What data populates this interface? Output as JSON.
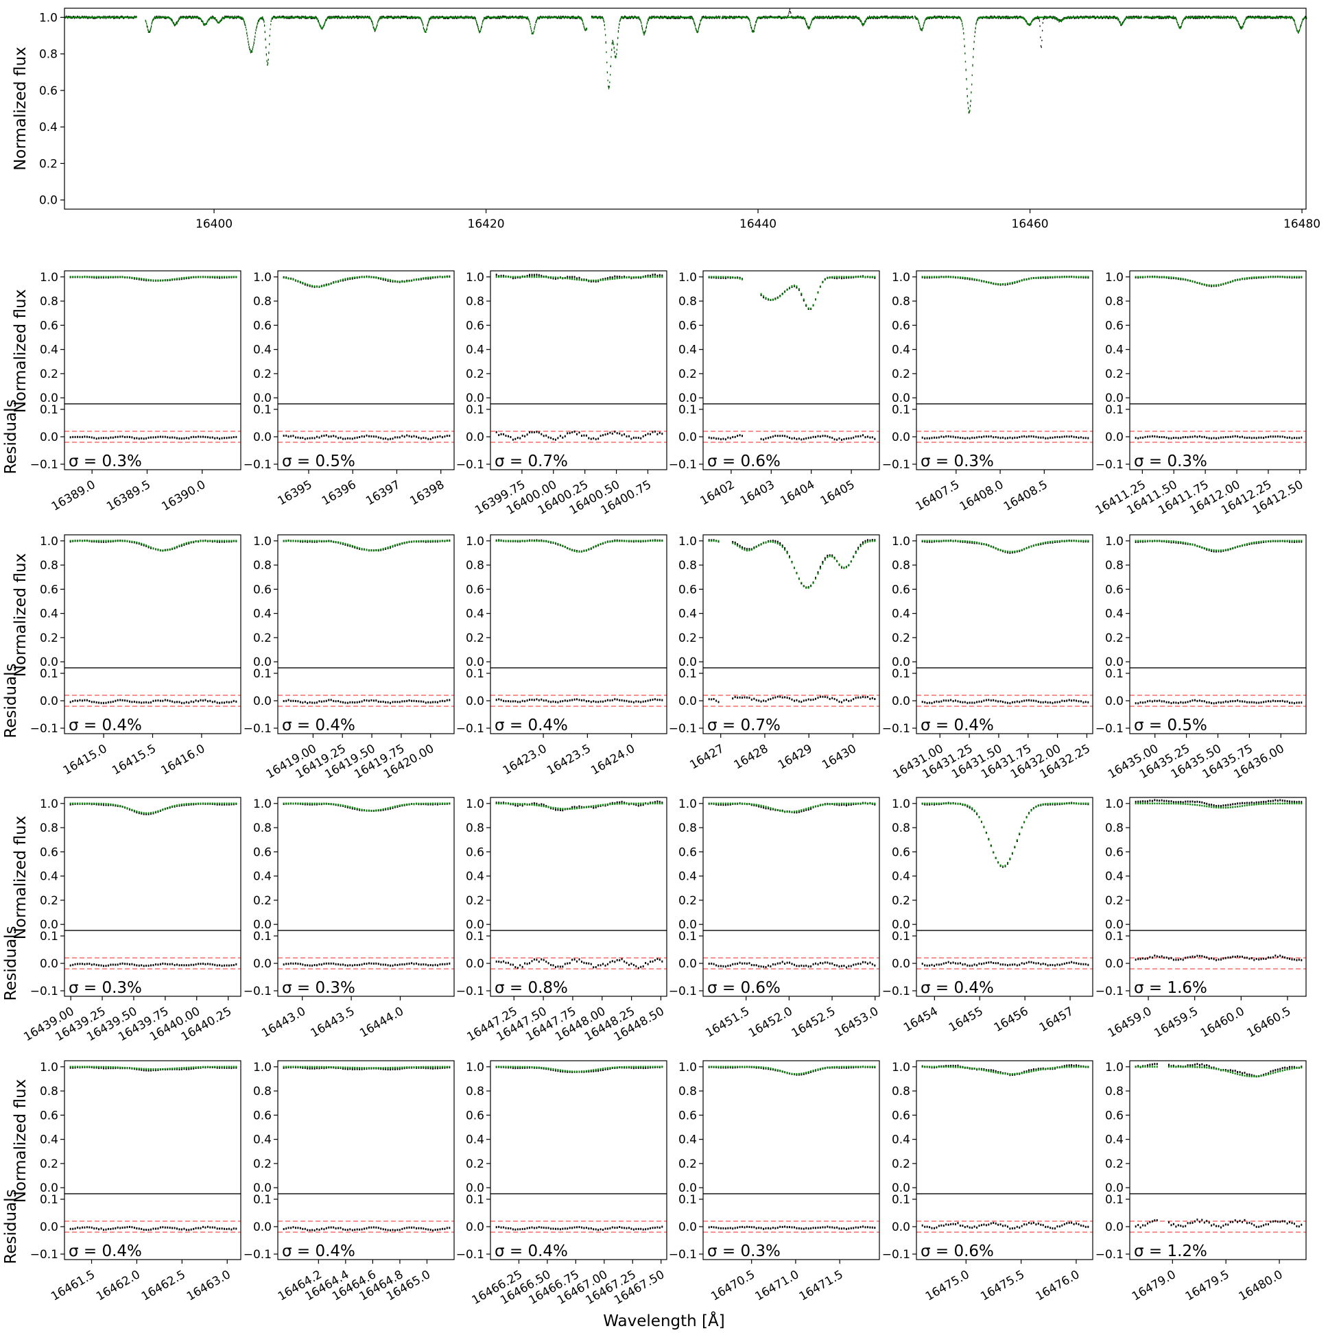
{
  "figure": {
    "xlabel": "Wavelength [Å]",
    "colors": {
      "observed": "#000000",
      "model": "#008000",
      "threshold": "#ff4d4d"
    }
  },
  "chart_data": [
    {
      "type": "scatter",
      "panel": "overview",
      "ylabel": "Normalized flux",
      "xlim": [
        16389,
        16480.3
      ],
      "ylim": [
        -0.05,
        1.05
      ],
      "x_ticks": [
        "16400",
        "16420",
        "16440",
        "16460",
        "16480"
      ],
      "y_ticks": [
        "0.0",
        "0.2",
        "0.4",
        "0.6",
        "0.8",
        "1.0"
      ],
      "gaps": [
        [
          16394.3,
          16394.9
        ],
        [
          16427.4,
          16427.7
        ],
        [
          16437.2,
          16437.3
        ],
        [
          16451.4,
          16451.5
        ],
        [
          16468.2,
          16468.3
        ]
      ],
      "series": [
        {
          "role": "model",
          "lines": [
            {
              "center": 16395.2,
              "depth": 0.08,
              "width": 0.15
            },
            {
              "center": 16397.1,
              "depth": 0.04,
              "width": 0.18
            },
            {
              "center": 16399.3,
              "depth": 0.04,
              "width": 0.18
            },
            {
              "center": 16400.3,
              "depth": 0.03,
              "width": 0.15
            },
            {
              "center": 16402.7,
              "depth": 0.19,
              "width": 0.25
            },
            {
              "center": 16403.9,
              "depth": 0.26,
              "width": 0.12
            },
            {
              "center": 16407.9,
              "depth": 0.06,
              "width": 0.18
            },
            {
              "center": 16411.8,
              "depth": 0.07,
              "width": 0.15
            },
            {
              "center": 16415.5,
              "depth": 0.08,
              "width": 0.15
            },
            {
              "center": 16419.5,
              "depth": 0.08,
              "width": 0.15
            },
            {
              "center": 16423.4,
              "depth": 0.09,
              "width": 0.15
            },
            {
              "center": 16427.3,
              "depth": 0.07,
              "width": 0.15
            },
            {
              "center": 16429.0,
              "depth": 0.39,
              "width": 0.15
            },
            {
              "center": 16429.5,
              "depth": 0.22,
              "width": 0.14
            },
            {
              "center": 16431.6,
              "depth": 0.09,
              "width": 0.15
            },
            {
              "center": 16435.5,
              "depth": 0.08,
              "width": 0.15
            },
            {
              "center": 16439.6,
              "depth": 0.08,
              "width": 0.15
            },
            {
              "center": 16443.7,
              "depth": 0.06,
              "width": 0.15
            },
            {
              "center": 16447.7,
              "depth": 0.04,
              "width": 0.15
            },
            {
              "center": 16452.0,
              "depth": 0.07,
              "width": 0.15
            },
            {
              "center": 16455.5,
              "depth": 0.52,
              "width": 0.22
            },
            {
              "center": 16459.9,
              "depth": 0.04,
              "width": 0.2
            },
            {
              "center": 16462.2,
              "depth": 0.02,
              "width": 0.2
            },
            {
              "center": 16466.7,
              "depth": 0.04,
              "width": 0.15
            },
            {
              "center": 16471.0,
              "depth": 0.06,
              "width": 0.15
            },
            {
              "center": 16475.5,
              "depth": 0.06,
              "width": 0.18
            },
            {
              "center": 16479.7,
              "depth": 0.08,
              "width": 0.18
            }
          ]
        },
        {
          "role": "observed",
          "extra_features": [
            {
              "center": 16442.3,
              "value": 1.04
            },
            {
              "center": 16460.8,
              "value": 0.83
            }
          ]
        }
      ]
    },
    {
      "type": "scatter",
      "panel": "zoom",
      "xlim": [
        16388.75,
        16390.35
      ],
      "x_ticks": [
        "16389.0",
        "16389.5",
        "16390.0"
      ],
      "sigma_label": "σ = 0.3%",
      "lines": [
        {
          "center": 16389.6,
          "depth": 0.03,
          "width": 0.14
        }
      ],
      "residual_shape": {
        "base": -0.003,
        "amp": 0.003
      }
    },
    {
      "type": "scatter",
      "panel": "zoom",
      "xlim": [
        16394.3,
        16398.3
      ],
      "x_ticks": [
        "16395",
        "16396",
        "16397",
        "16398"
      ],
      "sigma_label": "σ = 0.5%",
      "lines": [
        {
          "center": 16395.2,
          "depth": 0.08,
          "width": 0.35
        },
        {
          "center": 16397.1,
          "depth": 0.04,
          "width": 0.3
        }
      ],
      "residual_shape": {
        "base": -0.002,
        "amp": 0.005
      }
    },
    {
      "type": "scatter",
      "panel": "zoom",
      "xlim": [
        16399.5,
        16400.9
      ],
      "x_ticks": [
        "16399.75",
        "16400.00",
        "16400.25",
        "16400.50",
        "16400.75"
      ],
      "sigma_label": "σ = 0.7%",
      "lines": [
        {
          "center": 16400.3,
          "depth": 0.03,
          "width": 0.15
        }
      ],
      "residual_shape": {
        "base": 0.004,
        "amp": 0.01
      }
    },
    {
      "type": "scatter",
      "panel": "zoom",
      "xlim": [
        16401.3,
        16405.7
      ],
      "x_ticks": [
        "16402",
        "16403",
        "16404",
        "16405"
      ],
      "sigma_label": "σ = 0.6%",
      "lines": [
        {
          "center": 16403.0,
          "depth": 0.19,
          "width": 0.35
        },
        {
          "center": 16403.95,
          "depth": 0.26,
          "width": 0.17
        }
      ],
      "gap": [
        16402.3,
        16402.7
      ],
      "residual_shape": {
        "base": -0.003,
        "amp": 0.006
      }
    },
    {
      "type": "scatter",
      "panel": "zoom",
      "xlim": [
        16407.05,
        16409.05
      ],
      "x_ticks": [
        "16407.5",
        "16408.0",
        "16408.5"
      ],
      "sigma_label": "σ = 0.3%",
      "lines": [
        {
          "center": 16408.0,
          "depth": 0.06,
          "width": 0.2
        }
      ],
      "residual_shape": {
        "base": -0.002,
        "amp": 0.003
      }
    },
    {
      "type": "scatter",
      "panel": "zoom",
      "xlim": [
        16411.15,
        16412.55
      ],
      "x_ticks": [
        "16411.25",
        "16411.50",
        "16411.75",
        "16412.00",
        "16412.25",
        "16412.50"
      ],
      "sigma_label": "σ = 0.3%",
      "lines": [
        {
          "center": 16411.8,
          "depth": 0.07,
          "width": 0.14
        }
      ],
      "residual_shape": {
        "base": -0.002,
        "amp": 0.003
      }
    },
    {
      "type": "scatter",
      "panel": "zoom",
      "xlim": [
        16414.6,
        16416.4
      ],
      "x_ticks": [
        "16415.0",
        "16415.5",
        "16416.0"
      ],
      "sigma_label": "σ = 0.4%",
      "lines": [
        {
          "center": 16415.6,
          "depth": 0.08,
          "width": 0.14
        }
      ],
      "residual_shape": {
        "base": -0.003,
        "amp": 0.004
      }
    },
    {
      "type": "scatter",
      "panel": "zoom",
      "xlim": [
        16418.7,
        16420.2
      ],
      "x_ticks": [
        "16419.00",
        "16419.25",
        "16419.50",
        "16419.75",
        "16420.00"
      ],
      "sigma_label": "σ = 0.4%",
      "lines": [
        {
          "center": 16419.5,
          "depth": 0.08,
          "width": 0.15
        }
      ],
      "residual_shape": {
        "base": -0.003,
        "amp": 0.004
      }
    },
    {
      "type": "scatter",
      "panel": "zoom",
      "xlim": [
        16422.4,
        16424.4
      ],
      "x_ticks": [
        "16423.0",
        "16423.5",
        "16424.0"
      ],
      "sigma_label": "σ = 0.4%",
      "lines": [
        {
          "center": 16423.4,
          "depth": 0.09,
          "width": 0.15
        }
      ],
      "residual_shape": {
        "base": 0.0,
        "amp": 0.004
      }
    },
    {
      "type": "scatter",
      "panel": "zoom",
      "xlim": [
        16426.6,
        16430.6
      ],
      "x_ticks": [
        "16427",
        "16428",
        "16429",
        "16430"
      ],
      "sigma_label": "σ = 0.7%",
      "lines": [
        {
          "center": 16427.6,
          "depth": 0.08,
          "width": 0.2
        },
        {
          "center": 16428.95,
          "depth": 0.39,
          "width": 0.28
        },
        {
          "center": 16429.8,
          "depth": 0.22,
          "width": 0.2
        }
      ],
      "gap": [
        16426.95,
        16427.25
      ],
      "residual_shape": {
        "base": 0.006,
        "amp": 0.008
      }
    },
    {
      "type": "scatter",
      "panel": "zoom",
      "xlim": [
        16430.8,
        16432.3
      ],
      "x_ticks": [
        "16431.00",
        "16431.25",
        "16431.50",
        "16431.75",
        "16432.00",
        "16432.25"
      ],
      "sigma_label": "σ = 0.4%",
      "lines": [
        {
          "center": 16431.6,
          "depth": 0.09,
          "width": 0.15
        }
      ],
      "residual_shape": {
        "base": -0.003,
        "amp": 0.004
      }
    },
    {
      "type": "scatter",
      "panel": "zoom",
      "xlim": [
        16434.8,
        16436.2
      ],
      "x_ticks": [
        "16435.00",
        "16435.25",
        "16435.50",
        "16435.75",
        "16436.00"
      ],
      "sigma_label": "σ = 0.5%",
      "lines": [
        {
          "center": 16435.5,
          "depth": 0.08,
          "width": 0.15
        }
      ],
      "residual_shape": {
        "base": -0.004,
        "amp": 0.004
      }
    },
    {
      "type": "scatter",
      "panel": "zoom",
      "xlim": [
        16438.95,
        16440.35
      ],
      "x_ticks": [
        "16439.00",
        "16439.25",
        "16439.50",
        "16439.75",
        "16440.00",
        "16440.25"
      ],
      "sigma_label": "σ = 0.3%",
      "lines": [
        {
          "center": 16439.6,
          "depth": 0.08,
          "width": 0.13
        }
      ],
      "residual_shape": {
        "base": -0.005,
        "amp": 0.003
      }
    },
    {
      "type": "scatter",
      "panel": "zoom",
      "xlim": [
        16442.75,
        16444.55
      ],
      "x_ticks": [
        "16443.0",
        "16443.5",
        "16444.0"
      ],
      "sigma_label": "σ = 0.3%",
      "lines": [
        {
          "center": 16443.7,
          "depth": 0.06,
          "width": 0.18
        }
      ],
      "residual_shape": {
        "base": -0.004,
        "amp": 0.003
      }
    },
    {
      "type": "scatter",
      "panel": "zoom",
      "xlim": [
        16447.05,
        16448.55
      ],
      "x_ticks": [
        "16447.25",
        "16447.50",
        "16447.75",
        "16448.00",
        "16448.25",
        "16448.50"
      ],
      "sigma_label": "σ = 0.8%",
      "lines": [
        {
          "center": 16447.7,
          "depth": 0.045,
          "width": 0.18
        }
      ],
      "residual_shape": {
        "base": 0.0,
        "amp": 0.012
      }
    },
    {
      "type": "scatter",
      "panel": "zoom",
      "xlim": [
        16451.0,
        16453.05
      ],
      "x_ticks": [
        "16451.5",
        "16452.0",
        "16452.5",
        "16453.0"
      ],
      "sigma_label": "σ = 0.6%",
      "lines": [
        {
          "center": 16452.0,
          "depth": 0.07,
          "width": 0.2
        }
      ],
      "residual_shape": {
        "base": -0.005,
        "amp": 0.007
      }
    },
    {
      "type": "scatter",
      "panel": "zoom",
      "xlim": [
        16453.6,
        16457.5
      ],
      "x_ticks": [
        "16454",
        "16455",
        "16456",
        "16457"
      ],
      "sigma_label": "σ = 0.4%",
      "lines": [
        {
          "center": 16455.5,
          "depth": 0.52,
          "width": 0.3
        }
      ],
      "residual_shape": {
        "base": -0.002,
        "amp": 0.005
      }
    },
    {
      "type": "scatter",
      "panel": "zoom",
      "xlim": [
        16458.8,
        16460.7
      ],
      "x_ticks": [
        "16459.0",
        "16459.5",
        "16460.0",
        "16460.5"
      ],
      "sigma_label": "σ = 1.6%",
      "lines": [
        {
          "center": 16459.8,
          "depth": 0.035,
          "width": 0.2
        }
      ],
      "residual_shape": {
        "base": 0.02,
        "amp": 0.006
      }
    },
    {
      "type": "scatter",
      "panel": "zoom",
      "xlim": [
        16461.2,
        16463.15
      ],
      "x_ticks": [
        "16461.5",
        "16462.0",
        "16462.5",
        "16463.0"
      ],
      "sigma_label": "σ = 0.4%",
      "lines": [
        {
          "center": 16462.2,
          "depth": 0.02,
          "width": 0.25
        }
      ],
      "residual_shape": {
        "base": -0.006,
        "amp": 0.004
      }
    },
    {
      "type": "scatter",
      "panel": "zoom",
      "xlim": [
        16463.9,
        16465.2
      ],
      "x_ticks": [
        "16464.2",
        "16464.4",
        "16464.6",
        "16464.8",
        "16465.0"
      ],
      "sigma_label": "σ = 0.4%",
      "lines": [
        {
          "center": 16464.6,
          "depth": 0.01,
          "width": 0.2
        }
      ],
      "residual_shape": {
        "base": -0.008,
        "amp": 0.004
      }
    },
    {
      "type": "scatter",
      "panel": "zoom",
      "xlim": [
        16466.0,
        16467.55
      ],
      "x_ticks": [
        "16466.25",
        "16466.50",
        "16466.75",
        "16467.00",
        "16467.25",
        "16467.50"
      ],
      "sigma_label": "σ = 0.4%",
      "lines": [
        {
          "center": 16466.75,
          "depth": 0.04,
          "width": 0.17
        }
      ],
      "residual_shape": {
        "base": -0.006,
        "amp": 0.004
      }
    },
    {
      "type": "scatter",
      "panel": "zoom",
      "xlim": [
        16469.95,
        16471.95
      ],
      "x_ticks": [
        "16470.5",
        "16471.0",
        "16471.5"
      ],
      "sigma_label": "σ = 0.3%",
      "lines": [
        {
          "center": 16471.0,
          "depth": 0.06,
          "width": 0.17
        }
      ],
      "residual_shape": {
        "base": -0.004,
        "amp": 0.003
      }
    },
    {
      "type": "scatter",
      "panel": "zoom",
      "xlim": [
        16474.55,
        16476.15
      ],
      "x_ticks": [
        "16475.0",
        "16475.5",
        "16476.0"
      ],
      "sigma_label": "σ = 0.6%",
      "lines": [
        {
          "center": 16475.4,
          "depth": 0.06,
          "width": 0.2
        }
      ],
      "residual_shape": {
        "base": 0.004,
        "amp": 0.008
      }
    },
    {
      "type": "scatter",
      "panel": "zoom",
      "xlim": [
        16478.6,
        16480.25
      ],
      "x_ticks": [
        "16479.0",
        "16479.5",
        "16480.0"
      ],
      "sigma_label": "σ = 1.2%",
      "lines": [
        {
          "center": 16479.75,
          "depth": 0.08,
          "width": 0.2
        }
      ],
      "gap": [
        16478.85,
        16478.95
      ],
      "residual_shape": {
        "base": 0.012,
        "amp": 0.01
      }
    }
  ]
}
